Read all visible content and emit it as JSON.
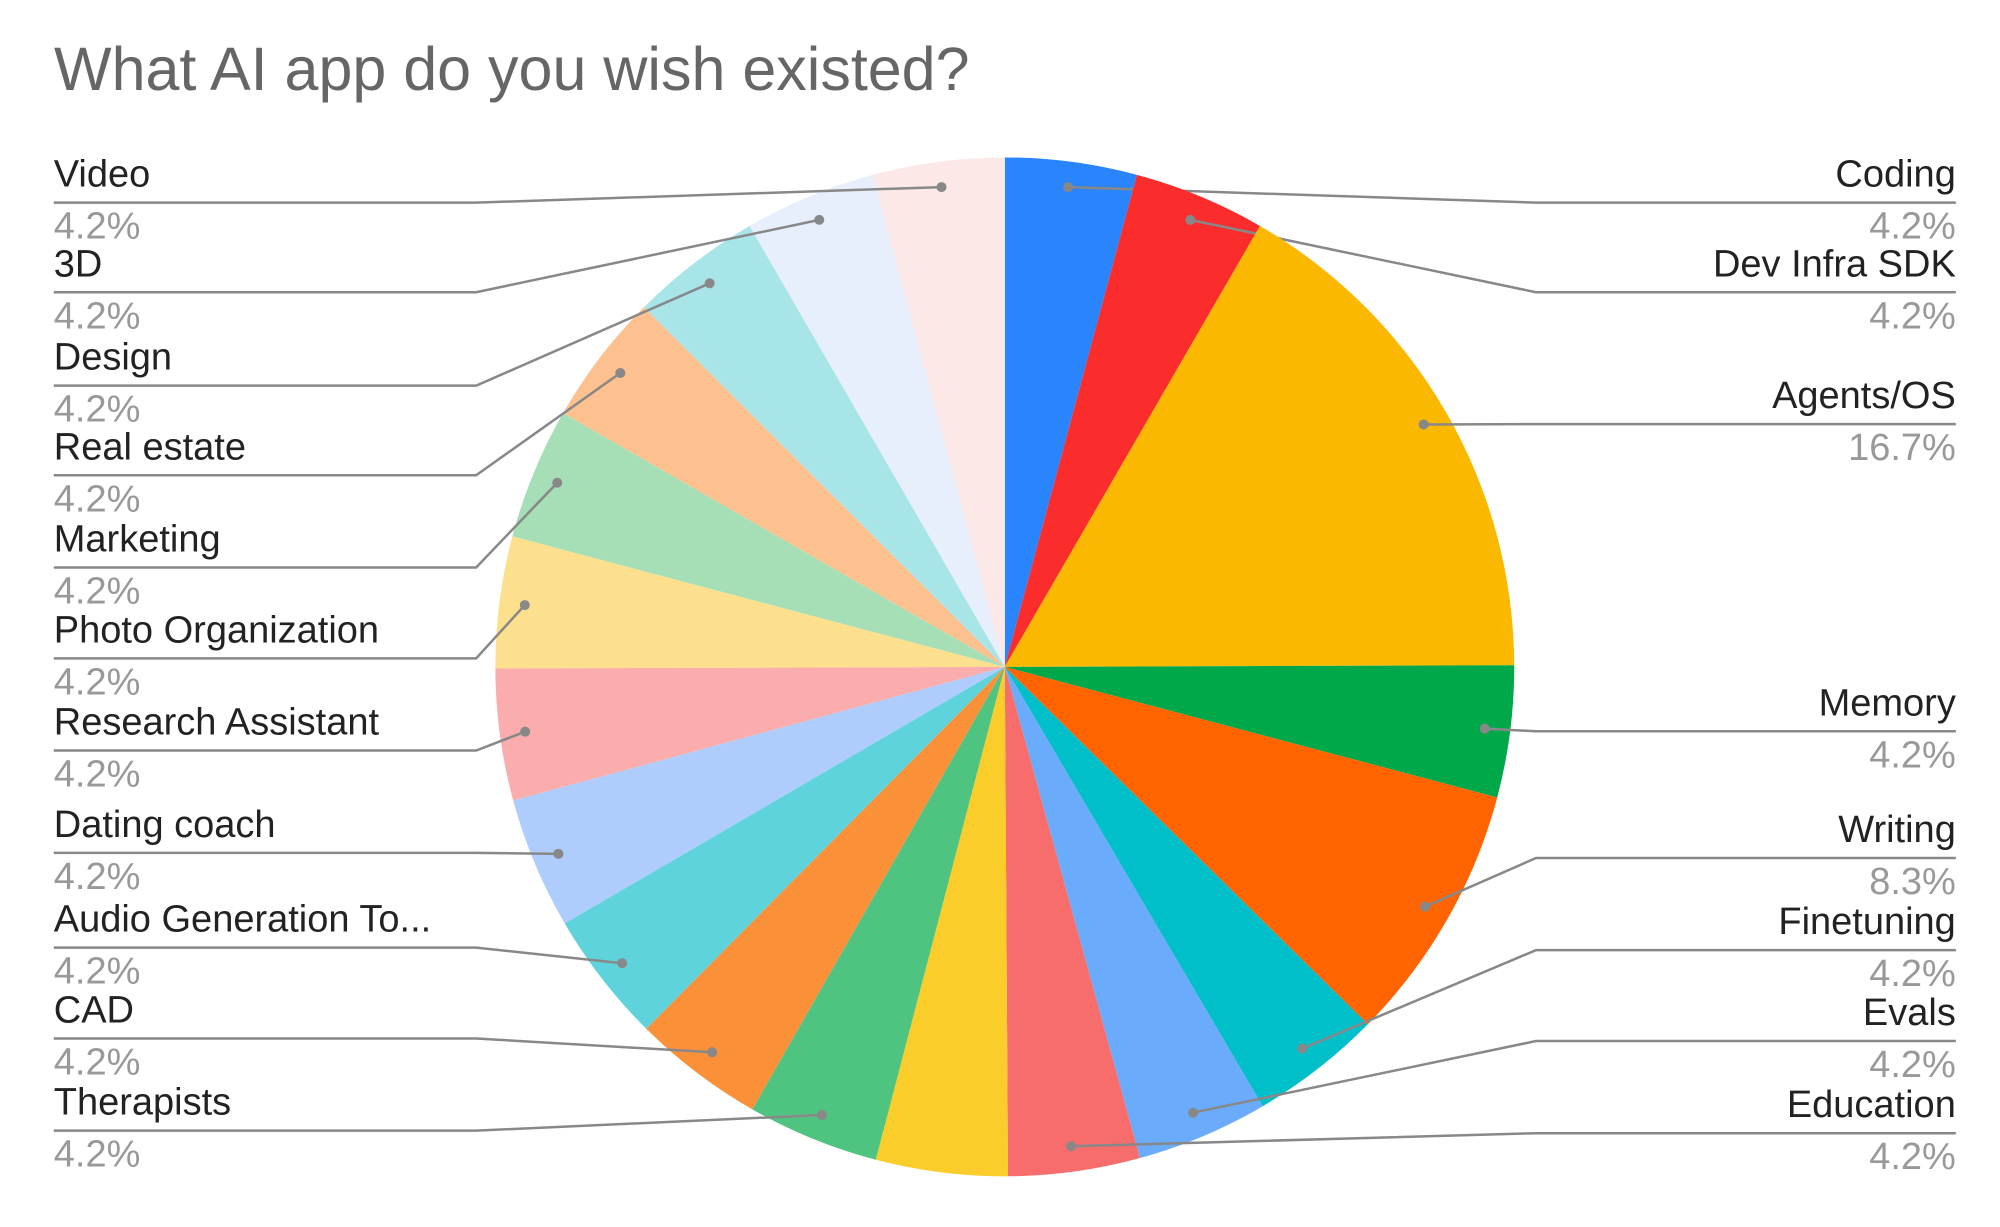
{
  "chart_data": {
    "type": "pie",
    "title": "What AI app do you wish existed?",
    "categories": [
      "Coding",
      "Dev Infra SDK",
      "Agents/OS",
      "Memory",
      "Writing",
      "Finetuning",
      "Evals",
      "Education",
      null,
      "Therapists",
      "CAD",
      "Audio Generation To...",
      "Dating coach",
      "Research Assistant",
      "Photo Organization",
      "Marketing",
      "Real estate",
      "Design",
      "3D",
      "Video"
    ],
    "values": [
      4.2,
      4.2,
      16.7,
      4.2,
      8.3,
      4.2,
      4.2,
      4.2,
      4.2,
      4.2,
      4.2,
      4.2,
      4.2,
      4.2,
      4.2,
      4.2,
      4.2,
      4.2,
      4.2,
      4.2
    ],
    "value_labels": [
      "4.2%",
      "4.2%",
      "16.7%",
      "4.2%",
      "8.3%",
      "4.2%",
      "4.2%",
      "4.2%",
      null,
      "4.2%",
      "4.2%",
      "4.2%",
      "4.2%",
      "4.2%",
      "4.2%",
      "4.2%",
      "4.2%",
      "4.2%",
      "4.2%",
      "4.2%"
    ],
    "colors": [
      "#2a84fb",
      "#fa2c2c",
      "#fbb800",
      "#00a84a",
      "#ff6400",
      "#00bfc8",
      "#6aabfb",
      "#f76d6b",
      "#fbcd2a",
      "#4fc380",
      "#fa9139",
      "#5fd3db",
      "#aecdfd",
      "#fbadad",
      "#fde08d",
      "#a6deb6",
      "#fdc08f",
      "#a8e5e8",
      "#e8effc",
      "#fde8e8"
    ]
  }
}
